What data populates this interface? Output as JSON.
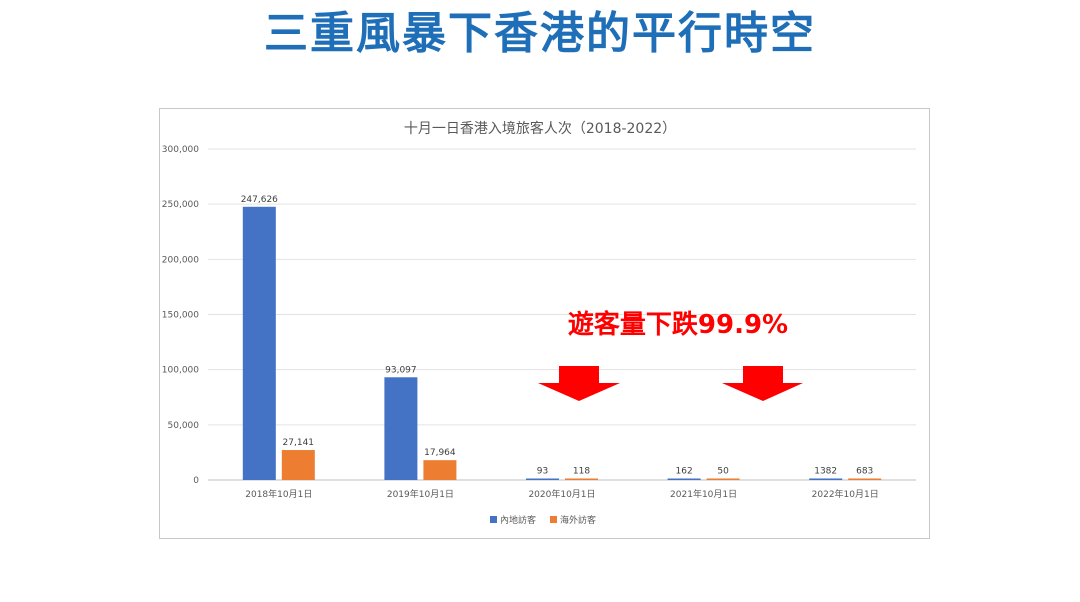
{
  "slide": {
    "title": "三重風暴下香港的平行時空"
  },
  "annotation": {
    "text": "遊客量下跌99.9%",
    "color": "#ff0000"
  },
  "chart_data": {
    "type": "bar",
    "title": "十月一日香港入境旅客人次（2018-2022）",
    "categories": [
      "2018年10月1日",
      "2019年10月1日",
      "2020年10月1日",
      "2021年10月1日",
      "2022年10月1日"
    ],
    "series": [
      {
        "name": "內地訪客",
        "color": "#4472c4",
        "values": [
          247626,
          93097,
          93,
          162,
          1382
        ],
        "labels": [
          "247,626",
          "93,097",
          "93",
          "162",
          "1382"
        ]
      },
      {
        "name": "海外訪客",
        "color": "#ed7d31",
        "values": [
          27141,
          17964,
          118,
          50,
          683
        ],
        "labels": [
          "27,141",
          "17,964",
          "118",
          "50",
          "683"
        ]
      }
    ],
    "ylim": [
      0,
      300000
    ],
    "yticks": [
      0,
      50000,
      100000,
      150000,
      200000,
      250000,
      300000
    ],
    "ytick_labels": [
      "0",
      "50,000",
      "100,000",
      "150,000",
      "200,000",
      "250,000",
      "300,000"
    ],
    "grid": true,
    "legend": "bottom"
  }
}
